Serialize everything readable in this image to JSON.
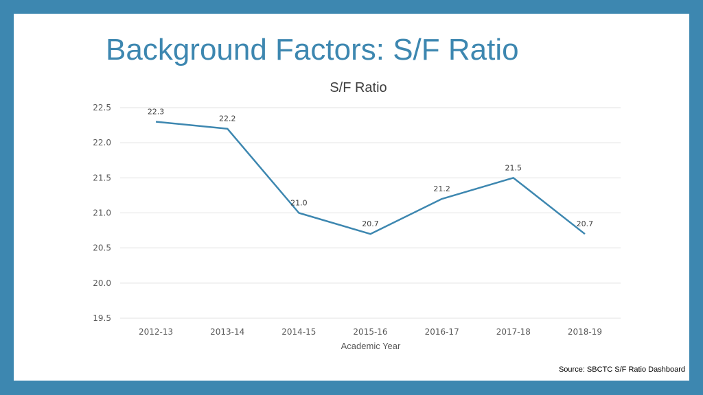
{
  "slide": {
    "title": "Background Factors: S/F Ratio",
    "source": "Source: SBCTC S/F Ratio Dashboard"
  },
  "chart_data": {
    "type": "line",
    "title": "S/F Ratio",
    "xlabel": "Academic Year",
    "ylabel": "",
    "categories": [
      "2012-13",
      "2013-14",
      "2014-15",
      "2015-16",
      "2016-17",
      "2017-18",
      "2018-19"
    ],
    "values": [
      22.3,
      22.2,
      21.0,
      20.7,
      21.2,
      21.5,
      20.7
    ],
    "data_labels": [
      "22.3",
      "22.2",
      "21.0",
      "20.7",
      "21.2",
      "21.5",
      "20.7"
    ],
    "ylim": [
      19.5,
      22.5
    ],
    "yticks": [
      "19.5",
      "20.0",
      "20.5",
      "21.0",
      "21.5",
      "22.0",
      "22.5"
    ],
    "grid": true,
    "legend": "none",
    "line_color": "#3d87b0"
  }
}
